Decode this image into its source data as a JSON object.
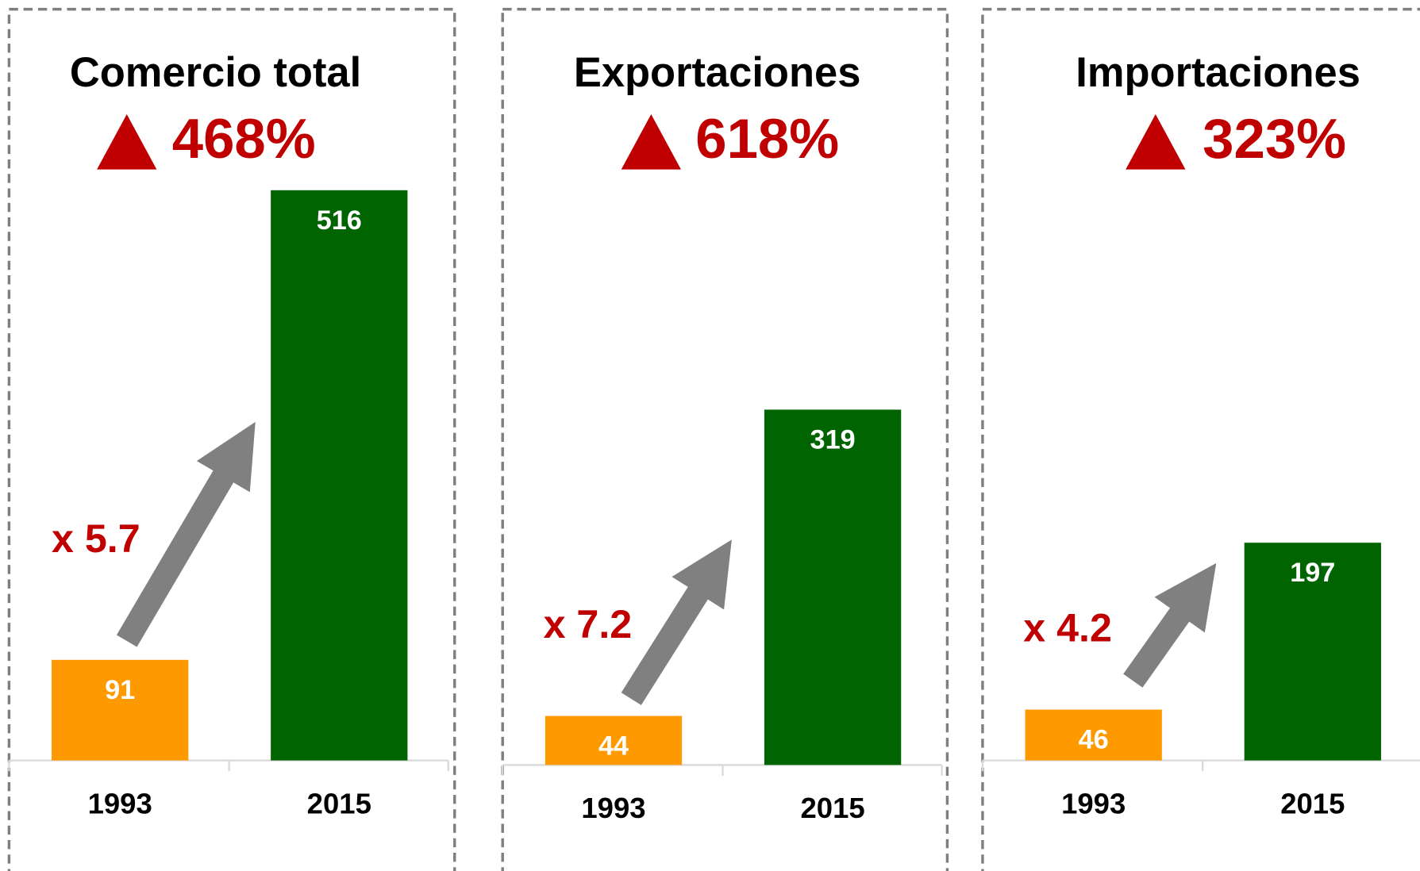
{
  "chart_data": [
    {
      "type": "bar",
      "title": "Comercio total",
      "annotation": "468%",
      "multiplier": "x 5.7",
      "categories": [
        "1993",
        "2015"
      ],
      "values": [
        91,
        516
      ],
      "colors": [
        "#ff9900",
        "#006400"
      ]
    },
    {
      "type": "bar",
      "title": "Exportaciones",
      "annotation": "618%",
      "multiplier": "x 7.2",
      "categories": [
        "1993",
        "2015"
      ],
      "values": [
        44,
        319
      ],
      "colors": [
        "#ff9900",
        "#006400"
      ]
    },
    {
      "type": "bar",
      "title": "Importaciones",
      "annotation": "323%",
      "multiplier": "x 4.2",
      "categories": [
        "1993",
        "2015"
      ],
      "values": [
        46,
        197
      ],
      "colors": [
        "#ff9900",
        "#006400"
      ]
    }
  ]
}
